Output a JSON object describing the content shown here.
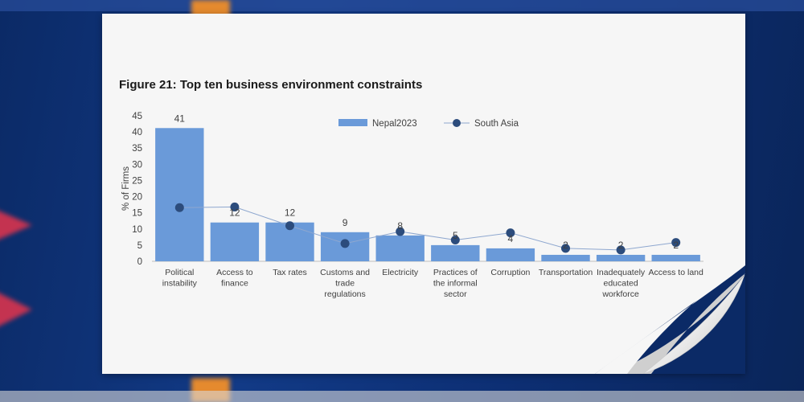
{
  "chart_data": {
    "type": "bar",
    "title": "Figure 21: Top ten business environment constraints",
    "ylabel": "% of Firms",
    "xlabel": "",
    "ylim": [
      0,
      45
    ],
    "yticks": [
      0,
      5,
      10,
      15,
      20,
      25,
      30,
      35,
      40,
      45
    ],
    "categories": [
      [
        "Political",
        "instability"
      ],
      [
        "Access to",
        "finance"
      ],
      [
        "Tax rates"
      ],
      [
        "Customs and",
        "trade",
        "regulations"
      ],
      [
        "Electricity"
      ],
      [
        "Practices of",
        "the informal",
        "sector"
      ],
      [
        "Corruption"
      ],
      [
        "Transportation"
      ],
      [
        "Inadequately",
        "educated",
        "workforce"
      ],
      [
        "Access to land"
      ]
    ],
    "series": [
      {
        "name": "Nepal2023",
        "kind": "bar",
        "color": "#6a9ad9",
        "values": [
          41.2,
          12,
          12,
          9,
          8,
          5,
          4,
          2,
          2,
          2
        ],
        "labels": [
          "41",
          "12",
          "12",
          "9",
          "8",
          "5",
          "4",
          "2",
          "2",
          "2"
        ]
      },
      {
        "name": "South Asia",
        "kind": "line",
        "color": "#2c4c7c",
        "line_color": "#8ea7cf",
        "values": [
          16.6,
          16.8,
          11,
          5.5,
          9.2,
          6.6,
          8.8,
          4,
          3.5,
          5.8
        ]
      }
    ],
    "legend": "top-center",
    "grid": false
  }
}
